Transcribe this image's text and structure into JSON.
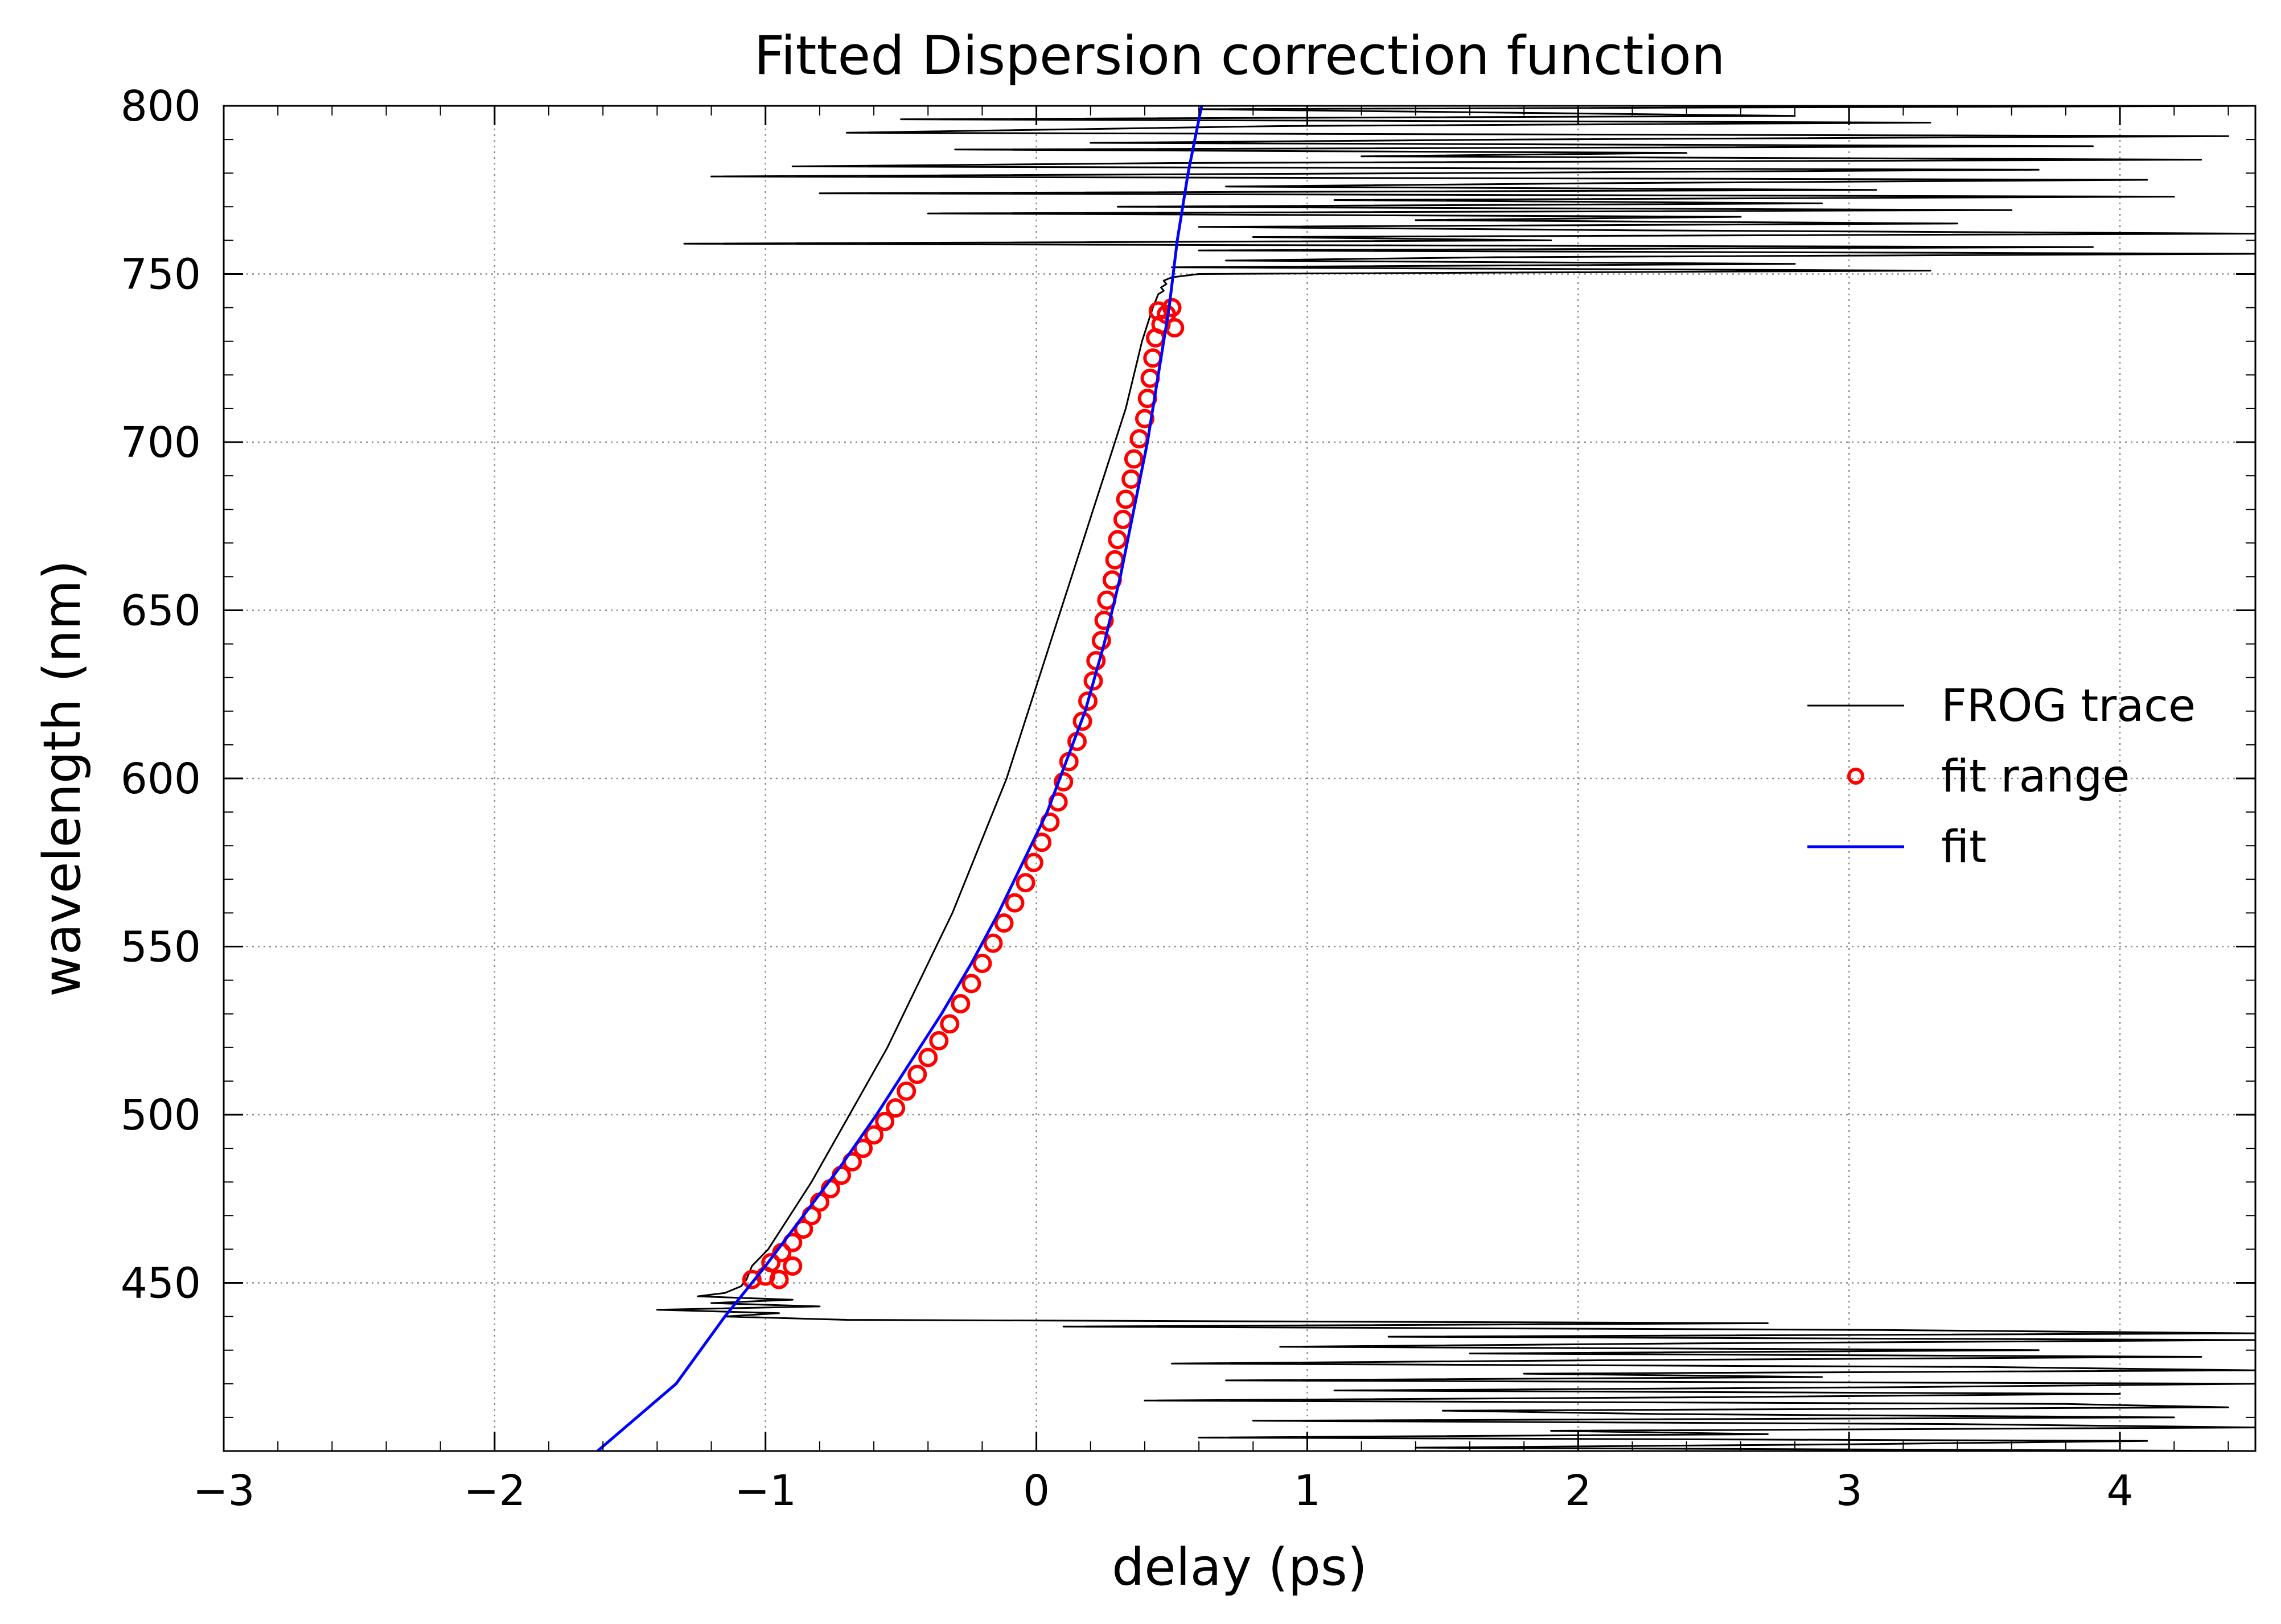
{
  "chart_data": {
    "type": "line",
    "title": "Fitted Dispersion correction function",
    "xlabel": "delay (ps)",
    "ylabel": "wavelength (nm)",
    "xlim": [
      -3,
      4.5
    ],
    "ylim": [
      400,
      800
    ],
    "xticks": [
      -3,
      -2,
      -1,
      0,
      1,
      2,
      3,
      4
    ],
    "xtick_labels": [
      "−3",
      "−2",
      "−1",
      "0",
      "1",
      "2",
      "3",
      "4"
    ],
    "yticks": [
      450,
      500,
      550,
      600,
      650,
      700,
      750,
      800
    ],
    "ytick_labels": [
      "450",
      "500",
      "550",
      "600",
      "650",
      "700",
      "750",
      "800"
    ],
    "grid": true,
    "legend_position": "right",
    "legend": [
      {
        "label": "FROG trace",
        "style": "thin-line",
        "color": "#000000"
      },
      {
        "label": "fit range",
        "style": "open-circle",
        "color": "#ff0000"
      },
      {
        "label": "fit",
        "style": "line",
        "color": "#0000ff"
      }
    ],
    "series": [
      {
        "name": "FROG trace",
        "color": "#000000",
        "style": "thin-line",
        "points": [
          [
            4.5,
            800
          ],
          [
            0.6,
            799
          ],
          [
            2.8,
            797
          ],
          [
            -0.5,
            796
          ],
          [
            3.3,
            795
          ],
          [
            0.9,
            794
          ],
          [
            -0.7,
            792
          ],
          [
            4.4,
            791
          ],
          [
            1.8,
            790
          ],
          [
            0.2,
            789
          ],
          [
            3.9,
            788
          ],
          [
            -0.3,
            787
          ],
          [
            2.4,
            786
          ],
          [
            1.2,
            785
          ],
          [
            4.3,
            784
          ],
          [
            0.5,
            783
          ],
          [
            -0.9,
            782
          ],
          [
            3.7,
            781
          ],
          [
            1.5,
            780
          ],
          [
            -1.2,
            779
          ],
          [
            4.1,
            778
          ],
          [
            2.1,
            777
          ],
          [
            0.7,
            776
          ],
          [
            3.1,
            775
          ],
          [
            -0.8,
            774
          ],
          [
            4.2,
            773
          ],
          [
            1.1,
            772
          ],
          [
            2.9,
            771
          ],
          [
            0.3,
            770
          ],
          [
            3.6,
            769
          ],
          [
            -0.4,
            768
          ],
          [
            2.6,
            767
          ],
          [
            1.4,
            766
          ],
          [
            3.4,
            765
          ],
          [
            0.6,
            764
          ],
          [
            2.2,
            763
          ],
          [
            4.5,
            762
          ],
          [
            0.8,
            761
          ],
          [
            1.9,
            760
          ],
          [
            -1.3,
            759
          ],
          [
            3.9,
            758
          ],
          [
            0.6,
            757
          ],
          [
            4.5,
            756
          ],
          [
            1.7,
            755
          ],
          [
            0.7,
            754
          ],
          [
            2.8,
            753
          ],
          [
            0.5,
            752
          ],
          [
            3.3,
            751
          ],
          [
            0.6,
            750
          ],
          [
            0.5,
            749
          ],
          [
            0.47,
            748
          ],
          [
            0.48,
            747
          ],
          [
            0.46,
            746
          ],
          [
            0.47,
            745
          ],
          [
            0.45,
            744
          ],
          [
            0.44,
            742
          ],
          [
            0.43,
            740
          ],
          [
            0.41,
            735
          ],
          [
            0.39,
            730
          ],
          [
            0.36,
            720
          ],
          [
            0.33,
            710
          ],
          [
            0.29,
            700
          ],
          [
            0.25,
            690
          ],
          [
            0.21,
            680
          ],
          [
            0.17,
            670
          ],
          [
            0.13,
            660
          ],
          [
            0.09,
            650
          ],
          [
            0.05,
            640
          ],
          [
            0.01,
            630
          ],
          [
            -0.03,
            620
          ],
          [
            -0.07,
            610
          ],
          [
            -0.11,
            600
          ],
          [
            -0.16,
            590
          ],
          [
            -0.21,
            580
          ],
          [
            -0.26,
            570
          ],
          [
            -0.31,
            560
          ],
          [
            -0.37,
            550
          ],
          [
            -0.43,
            540
          ],
          [
            -0.49,
            530
          ],
          [
            -0.55,
            520
          ],
          [
            -0.62,
            510
          ],
          [
            -0.69,
            500
          ],
          [
            -0.76,
            490
          ],
          [
            -0.83,
            480
          ],
          [
            -0.91,
            470
          ],
          [
            -0.99,
            460
          ],
          [
            -1.05,
            455
          ],
          [
            -1.07,
            451
          ],
          [
            -1.09,
            449
          ],
          [
            -1.15,
            447
          ],
          [
            -1.25,
            446
          ],
          [
            -0.9,
            445
          ],
          [
            -1.2,
            444
          ],
          [
            -0.8,
            443
          ],
          [
            -1.4,
            442
          ],
          [
            -0.95,
            441
          ],
          [
            -1.15,
            440
          ],
          [
            -0.7,
            439
          ],
          [
            2.7,
            438
          ],
          [
            0.1,
            437
          ],
          [
            3.1,
            436
          ],
          [
            4.5,
            435
          ],
          [
            1.3,
            434
          ],
          [
            4.5,
            433
          ],
          [
            2.4,
            432
          ],
          [
            0.9,
            431
          ],
          [
            3.7,
            430
          ],
          [
            1.6,
            429
          ],
          [
            4.3,
            428
          ],
          [
            2.1,
            427
          ],
          [
            0.5,
            426
          ],
          [
            3.5,
            425
          ],
          [
            4.5,
            424
          ],
          [
            1.8,
            423
          ],
          [
            2.9,
            422
          ],
          [
            0.7,
            421
          ],
          [
            4.5,
            420
          ],
          [
            3.2,
            419
          ],
          [
            1.1,
            418
          ],
          [
            4.0,
            417
          ],
          [
            2.5,
            416
          ],
          [
            0.4,
            415
          ],
          [
            3.8,
            414
          ],
          [
            4.4,
            413
          ],
          [
            1.5,
            412
          ],
          [
            2.3,
            411
          ],
          [
            4.2,
            410
          ],
          [
            0.8,
            409
          ],
          [
            3.4,
            408
          ],
          [
            4.5,
            407
          ],
          [
            1.9,
            406
          ],
          [
            2.7,
            405
          ],
          [
            0.6,
            404
          ],
          [
            4.1,
            403
          ],
          [
            3.0,
            402
          ],
          [
            1.4,
            401
          ],
          [
            4.5,
            400
          ]
        ]
      },
      {
        "name": "fit range",
        "color": "#ff0000",
        "style": "open-circle",
        "points": [
          [
            -1.05,
            451
          ],
          [
            -1.0,
            452
          ],
          [
            -0.95,
            451
          ],
          [
            -0.9,
            455
          ],
          [
            -0.98,
            456
          ],
          [
            -0.94,
            459
          ],
          [
            -0.9,
            462
          ],
          [
            -0.86,
            466
          ],
          [
            -0.83,
            470
          ],
          [
            -0.8,
            474
          ],
          [
            -0.76,
            478
          ],
          [
            -0.72,
            482
          ],
          [
            -0.68,
            486
          ],
          [
            -0.64,
            490
          ],
          [
            -0.6,
            494
          ],
          [
            -0.56,
            498
          ],
          [
            -0.52,
            502
          ],
          [
            -0.48,
            507
          ],
          [
            -0.44,
            512
          ],
          [
            -0.4,
            517
          ],
          [
            -0.36,
            522
          ],
          [
            -0.32,
            527
          ],
          [
            -0.28,
            533
          ],
          [
            -0.24,
            539
          ],
          [
            -0.2,
            545
          ],
          [
            -0.16,
            551
          ],
          [
            -0.12,
            557
          ],
          [
            -0.08,
            563
          ],
          [
            -0.04,
            569
          ],
          [
            -0.01,
            575
          ],
          [
            0.02,
            581
          ],
          [
            0.05,
            587
          ],
          [
            0.08,
            593
          ],
          [
            0.1,
            599
          ],
          [
            0.12,
            605
          ],
          [
            0.15,
            611
          ],
          [
            0.17,
            617
          ],
          [
            0.19,
            623
          ],
          [
            0.21,
            629
          ],
          [
            0.22,
            635
          ],
          [
            0.24,
            641
          ],
          [
            0.25,
            647
          ],
          [
            0.26,
            653
          ],
          [
            0.28,
            659
          ],
          [
            0.29,
            665
          ],
          [
            0.3,
            671
          ],
          [
            0.32,
            677
          ],
          [
            0.33,
            683
          ],
          [
            0.35,
            689
          ],
          [
            0.36,
            695
          ],
          [
            0.38,
            701
          ],
          [
            0.4,
            707
          ],
          [
            0.41,
            713
          ],
          [
            0.42,
            719
          ],
          [
            0.43,
            725
          ],
          [
            0.44,
            731
          ],
          [
            0.46,
            735
          ],
          [
            0.48,
            738
          ],
          [
            0.5,
            740
          ],
          [
            0.45,
            739
          ],
          [
            0.51,
            734
          ]
        ]
      },
      {
        "name": "fit",
        "color": "#0000ff",
        "style": "line",
        "points": [
          [
            -1.62,
            400
          ],
          [
            -1.33,
            420
          ],
          [
            -1.15,
            440
          ],
          [
            -1.0,
            455
          ],
          [
            -0.86,
            470
          ],
          [
            -0.72,
            485
          ],
          [
            -0.59,
            500
          ],
          [
            -0.47,
            515
          ],
          [
            -0.35,
            530
          ],
          [
            -0.24,
            545
          ],
          [
            -0.14,
            560
          ],
          [
            -0.05,
            575
          ],
          [
            0.04,
            590
          ],
          [
            0.11,
            605
          ],
          [
            0.18,
            620
          ],
          [
            0.25,
            640
          ],
          [
            0.31,
            660
          ],
          [
            0.36,
            680
          ],
          [
            0.41,
            700
          ],
          [
            0.45,
            720
          ],
          [
            0.49,
            740
          ],
          [
            0.52,
            760
          ],
          [
            0.56,
            780
          ],
          [
            0.61,
            800
          ]
        ]
      }
    ]
  }
}
